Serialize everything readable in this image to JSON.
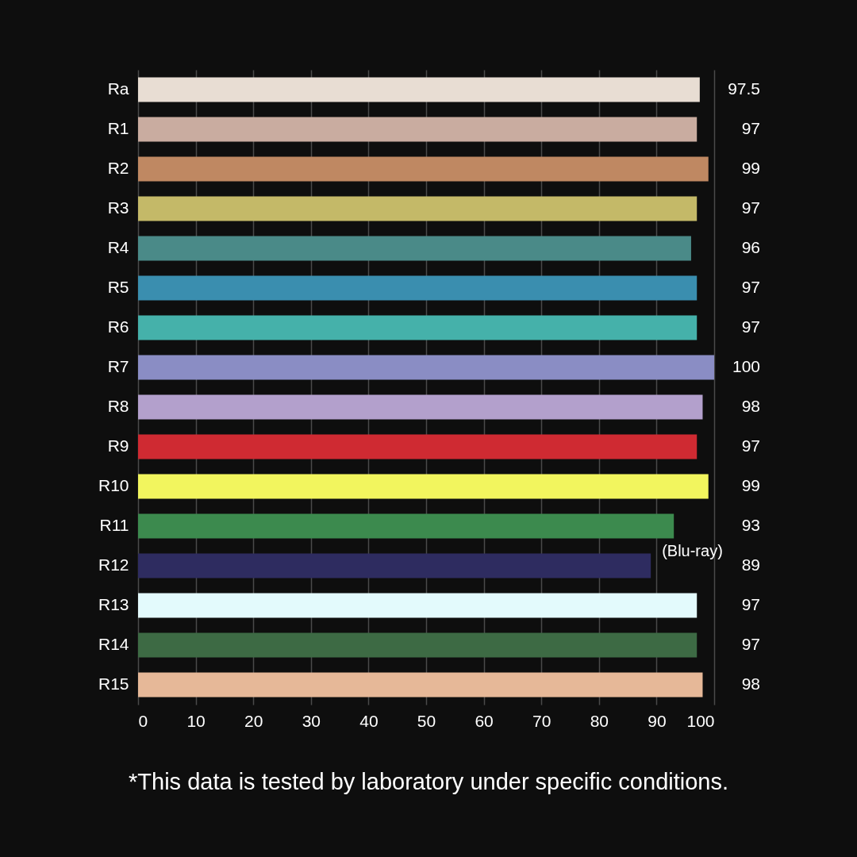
{
  "chart_data": {
    "type": "bar",
    "orientation": "horizontal",
    "categories": [
      "Ra",
      "R1",
      "R2",
      "R3",
      "R4",
      "R5",
      "R6",
      "R7",
      "R8",
      "R9",
      "R10",
      "R11",
      "R12",
      "R13",
      "R14",
      "R15"
    ],
    "values": [
      97.5,
      97,
      99,
      97,
      96,
      97,
      97,
      100,
      98,
      97,
      99,
      93,
      89,
      97,
      97,
      98
    ],
    "colors": [
      "#e8ddd3",
      "#c9aca0",
      "#bf8862",
      "#c4b968",
      "#4a8a88",
      "#3a8eaf",
      "#45b1aa",
      "#8a8dc4",
      "#b3a0cc",
      "#cf2a32",
      "#f2f55e",
      "#3c8a4e",
      "#2e2c60",
      "#e3fafc",
      "#3d6a44",
      "#e6b898"
    ],
    "xlim": [
      0,
      100
    ],
    "xticks": [
      0,
      10,
      20,
      30,
      40,
      50,
      60,
      70,
      80,
      90,
      100
    ],
    "grid": "x",
    "data_labels": true,
    "annotations": [
      {
        "text": "(Blu-ray)",
        "x": 89,
        "y": "R12"
      },
      "*This data is tested by laboratory under specific conditions."
    ]
  }
}
